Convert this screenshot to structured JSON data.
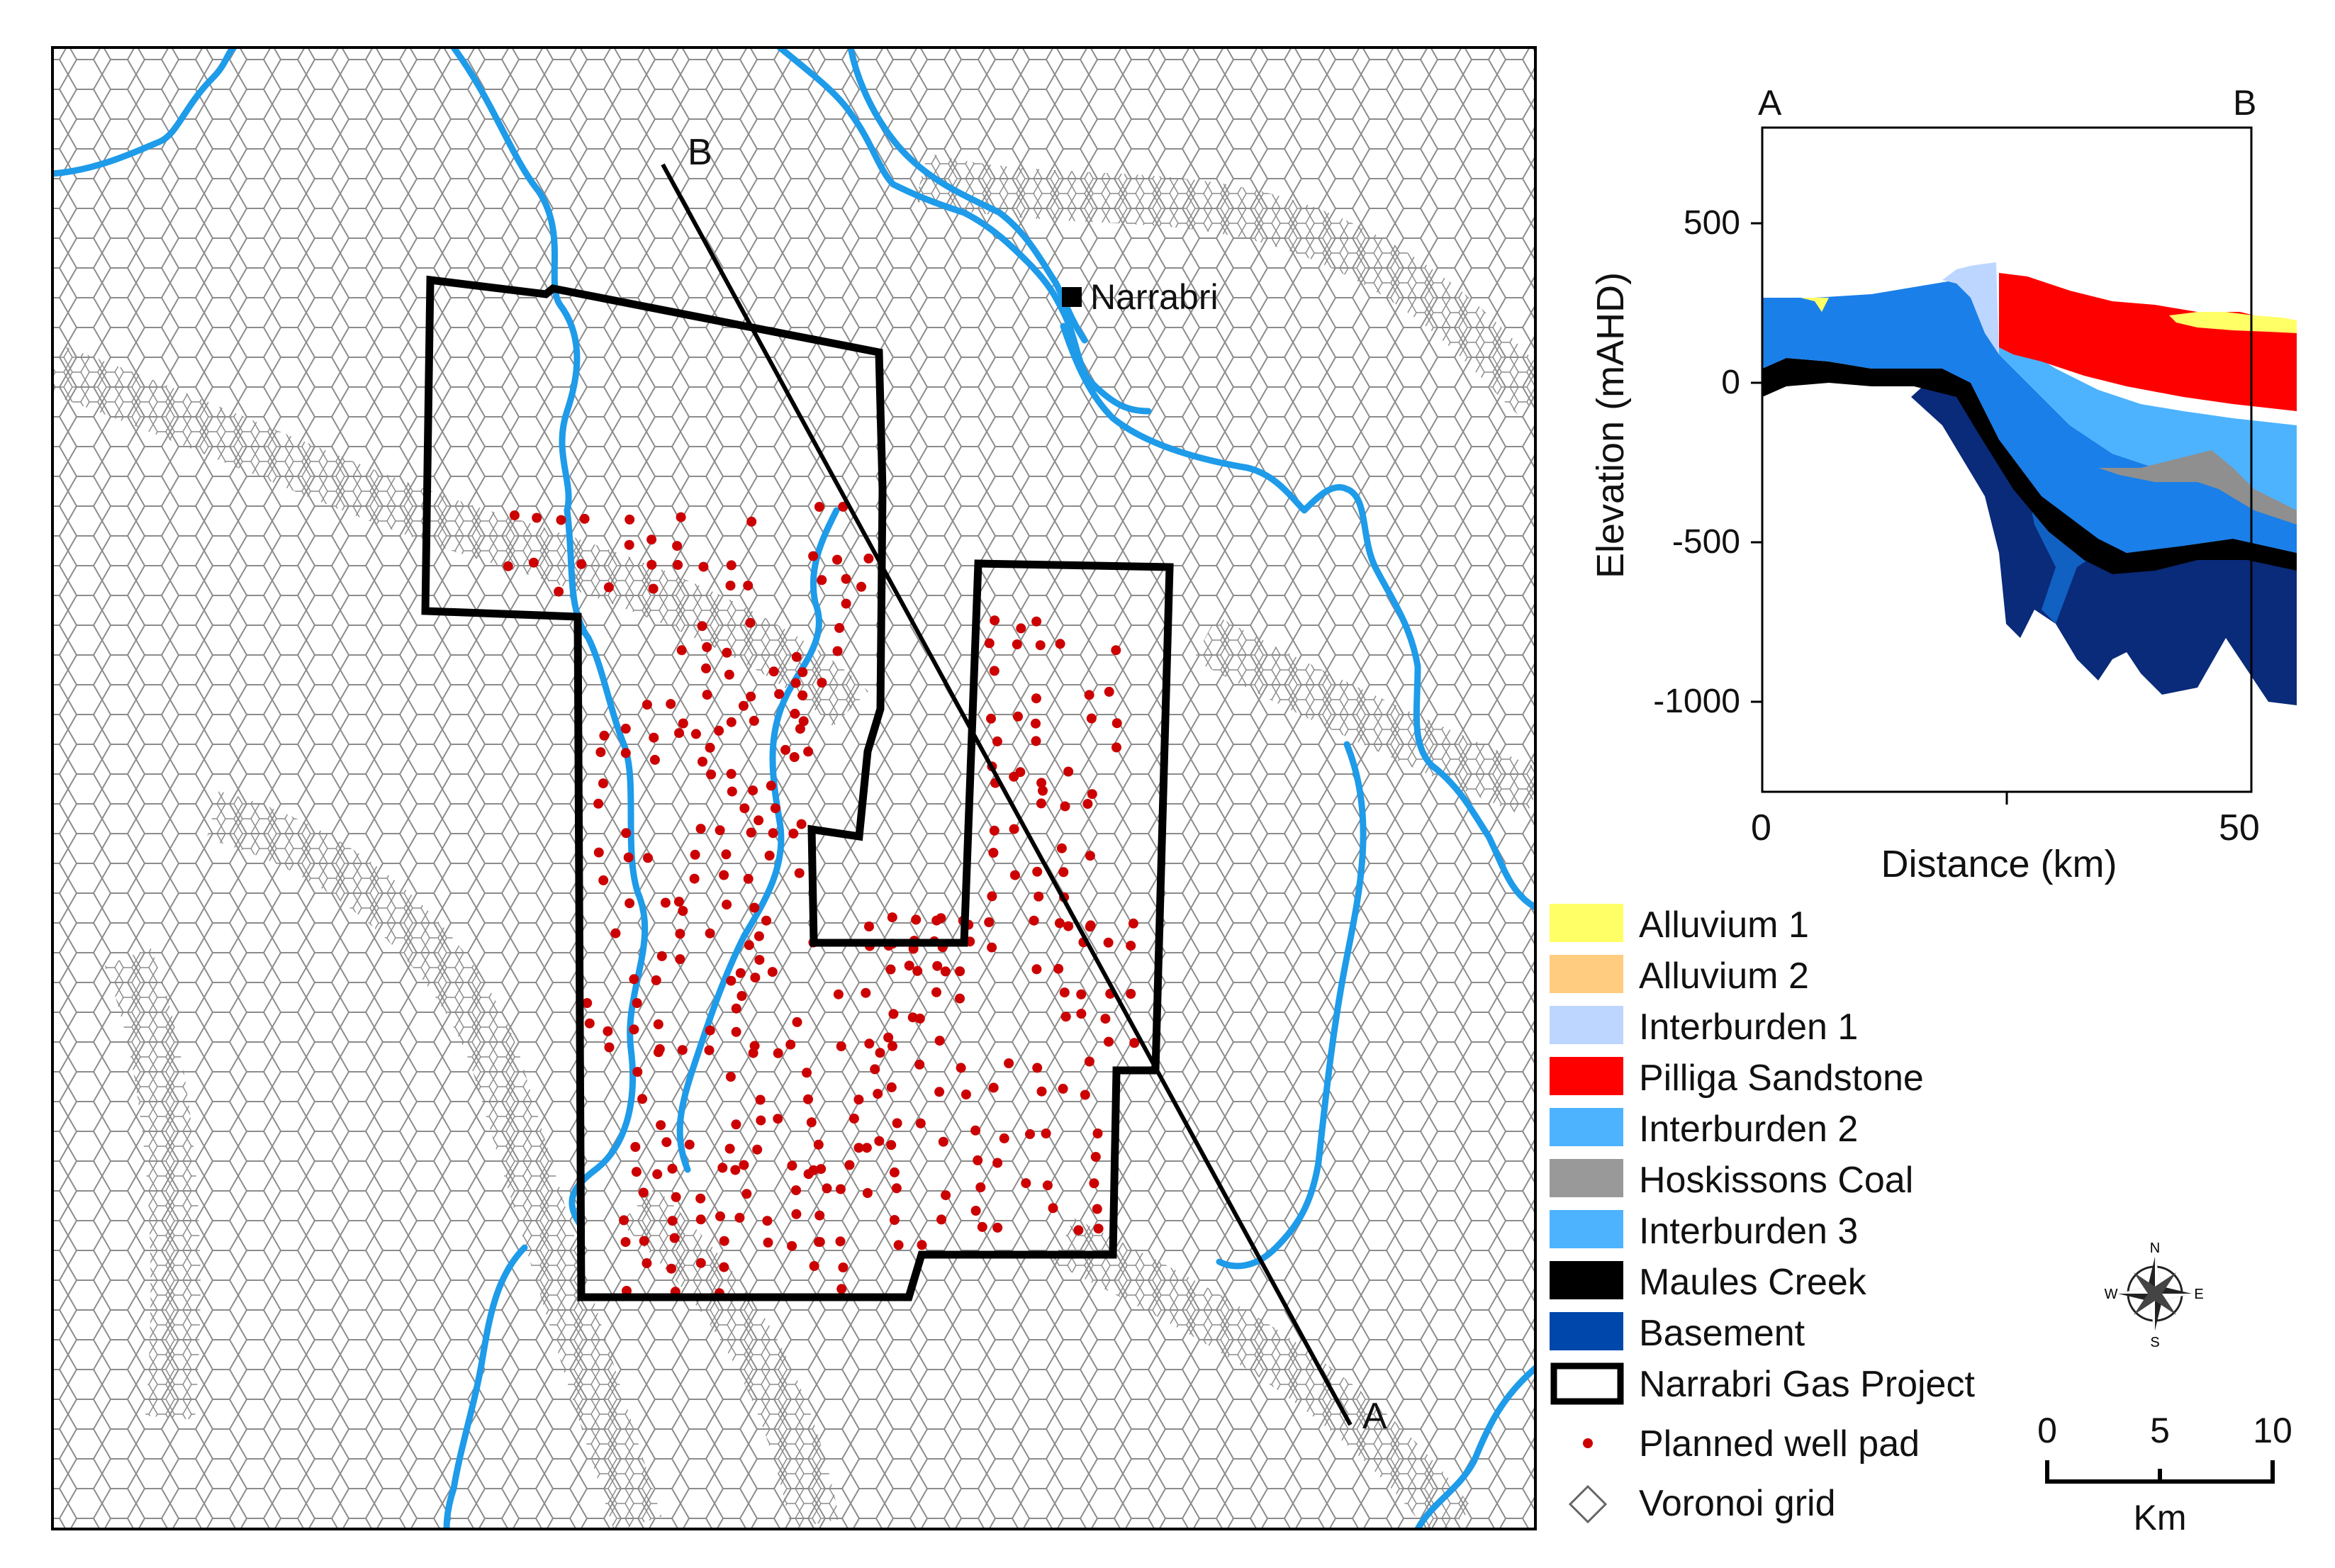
{
  "map": {
    "town_label": "Narrabri",
    "section_start_label": "A",
    "section_end_label": "B"
  },
  "cross_section": {
    "left_label": "A",
    "right_label": "B",
    "y_axis_title": "Elevation (mAHD)",
    "x_axis_title": "Distance (km)",
    "y_ticks": [
      "500",
      "0",
      "-500",
      "-1000"
    ],
    "x_ticks": [
      "0",
      "50"
    ]
  },
  "legend": {
    "items": [
      {
        "label": "Alluvium 1",
        "color": "#ffff66"
      },
      {
        "label": "Alluvium 2",
        "color": "#ffcc80"
      },
      {
        "label": "Interburden 1",
        "color": "#bcd6ff"
      },
      {
        "label": "Pilliga Sandstone",
        "color": "#ff0000"
      },
      {
        "label": "Interburden 2",
        "color": "#4db3ff"
      },
      {
        "label": "Hoskissons Coal",
        "color": "#999999"
      },
      {
        "label": "Interburden 3",
        "color": "#4db3ff"
      },
      {
        "label": "Maules Creek",
        "color": "#000000"
      },
      {
        "label": "Basement",
        "color": "#0047ab"
      },
      {
        "label": "Narrabri Gas Project",
        "color": "#ffffff"
      },
      {
        "label": "Planned well pad",
        "color": "#cc0000"
      },
      {
        "label": "Voronoi grid",
        "color": "#ffffff"
      }
    ]
  },
  "compass": {
    "n": "N",
    "s": "S",
    "e": "E",
    "w": "W"
  },
  "scale_bar": {
    "ticks": [
      "0",
      "5",
      "10"
    ],
    "unit": "Km"
  }
}
